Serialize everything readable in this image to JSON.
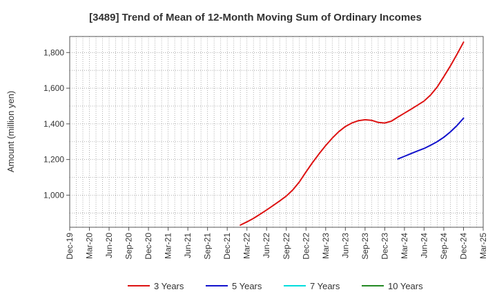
{
  "chart_data": {
    "type": "line",
    "title": "[3489]  Trend of Mean of 12-Month Moving Sum of Ordinary Incomes",
    "xlabel": "",
    "ylabel": "Amount (million yen)",
    "ylim": [
      820,
      1890
    ],
    "yticks": [
      1000,
      1200,
      1400,
      1600,
      1800
    ],
    "ytick_labels": [
      "1,000",
      "1,200",
      "1,400",
      "1,600",
      "1,800"
    ],
    "categories": [
      "Dec-19",
      "Mar-20",
      "Jun-20",
      "Sep-20",
      "Dec-20",
      "Mar-21",
      "Jun-21",
      "Sep-21",
      "Dec-21",
      "Mar-22",
      "Jun-22",
      "Sep-22",
      "Dec-22",
      "Mar-23",
      "Jun-23",
      "Sep-23",
      "Dec-23",
      "Mar-24",
      "Jun-24",
      "Sep-24",
      "Dec-24",
      "Mar-25"
    ],
    "months": [
      "Dec-19",
      "Jan-20",
      "Feb-20",
      "Mar-20",
      "Apr-20",
      "May-20",
      "Jun-20",
      "Jul-20",
      "Aug-20",
      "Sep-20",
      "Oct-20",
      "Nov-20",
      "Dec-20",
      "Jan-21",
      "Feb-21",
      "Mar-21",
      "Apr-21",
      "May-21",
      "Jun-21",
      "Jul-21",
      "Aug-21",
      "Sep-21",
      "Oct-21",
      "Nov-21",
      "Dec-21",
      "Jan-22",
      "Feb-22",
      "Mar-22",
      "Apr-22",
      "May-22",
      "Jun-22",
      "Jul-22",
      "Aug-22",
      "Sep-22",
      "Oct-22",
      "Nov-22",
      "Dec-22",
      "Jan-23",
      "Feb-23",
      "Mar-23",
      "Apr-23",
      "May-23",
      "Jun-23",
      "Jul-23",
      "Aug-23",
      "Sep-23",
      "Oct-23",
      "Nov-23",
      "Dec-23",
      "Jan-24",
      "Feb-24",
      "Mar-24",
      "Apr-24",
      "May-24",
      "Jun-24",
      "Jul-24",
      "Aug-24",
      "Sep-24",
      "Oct-24",
      "Nov-24",
      "Dec-24",
      "Jan-25",
      "Feb-25",
      "Mar-25"
    ],
    "grid": true,
    "legend_placement": "bottom",
    "series": [
      {
        "name": "3 Years",
        "color": "#dd1111",
        "x": [
          "Feb-22",
          "Mar-22",
          "Apr-22",
          "May-22",
          "Jun-22",
          "Jul-22",
          "Aug-22",
          "Sep-22",
          "Oct-22",
          "Nov-22",
          "Dec-22",
          "Jan-23",
          "Feb-23",
          "Mar-23",
          "Apr-23",
          "May-23",
          "Jun-23",
          "Jul-23",
          "Aug-23",
          "Sep-23",
          "Oct-23",
          "Nov-23",
          "Dec-23",
          "Jan-24",
          "Feb-24",
          "Mar-24",
          "Apr-24",
          "May-24",
          "Jun-24",
          "Jul-24",
          "Aug-24",
          "Sep-24",
          "Oct-24",
          "Nov-24",
          "Dec-24"
        ],
        "y": [
          832,
          850,
          870,
          893,
          917,
          942,
          968,
          995,
          1030,
          1075,
          1130,
          1183,
          1232,
          1278,
          1320,
          1356,
          1385,
          1405,
          1418,
          1423,
          1420,
          1408,
          1405,
          1415,
          1438,
          1460,
          1482,
          1505,
          1528,
          1562,
          1607,
          1665,
          1725,
          1790,
          1858
        ]
      },
      {
        "name": "5 Years",
        "color": "#1111cc",
        "x": [
          "Feb-24",
          "Mar-24",
          "Apr-24",
          "May-24",
          "Jun-24",
          "Jul-24",
          "Aug-24",
          "Sep-24",
          "Oct-24",
          "Nov-24",
          "Dec-24"
        ],
        "y": [
          1203,
          1218,
          1233,
          1248,
          1262,
          1280,
          1300,
          1325,
          1355,
          1390,
          1432
        ]
      },
      {
        "name": "7 Years",
        "color": "#00dddd",
        "x": [],
        "y": []
      },
      {
        "name": "10 Years",
        "color": "#228822",
        "x": [],
        "y": []
      }
    ]
  }
}
